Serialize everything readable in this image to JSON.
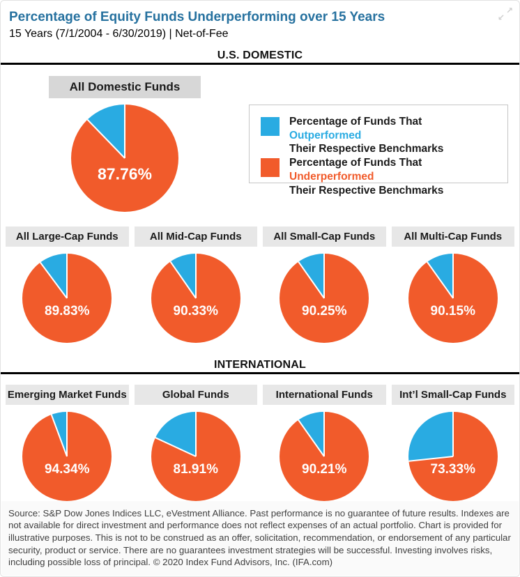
{
  "header": {
    "title": "Percentage of Equity Funds Underperforming over 15 Years",
    "subtitle": "15 Years (7/1/2004 - 6/30/2019) | Net-of-Fee"
  },
  "icons": {
    "expand_ne": "↗",
    "expand_sw": "↙"
  },
  "colors": {
    "outperformed": "#29ABE2",
    "underperformed": "#F15B2B",
    "title": "#26719F"
  },
  "legend": {
    "items": [
      {
        "swatch": "outperformed",
        "prefix": "Percentage of Funds That ",
        "highlight": "Outperformed",
        "line2": "Their Respective Benchmarks"
      },
      {
        "swatch": "underperformed",
        "prefix": "Percentage of Funds That ",
        "highlight": "Underperformed",
        "line2": "Their Respective Benchmarks"
      }
    ]
  },
  "chart_data": {
    "type": "pie",
    "title": "Percentage of Equity Funds Underperforming over 15 Years",
    "subtitle": "15 Years (7/1/2004 - 6/30/2019) | Net-of-Fee",
    "unit": "%",
    "legend": [
      "Percentage of Funds That Outperformed Their Respective Benchmarks",
      "Percentage of Funds That Underperformed Their Respective Benchmarks"
    ],
    "legend_position": "right of hero pie",
    "sections": [
      {
        "name": "U.S. DOMESTIC",
        "pies": [
          {
            "label": "All Domestic Funds",
            "underperformed_pct": 87.76,
            "outperformed_pct": 12.24,
            "display": "87.76%"
          },
          {
            "label": "All Large-Cap Funds",
            "underperformed_pct": 89.83,
            "outperformed_pct": 10.17,
            "display": "89.83%"
          },
          {
            "label": "All Mid-Cap Funds",
            "underperformed_pct": 90.33,
            "outperformed_pct": 9.67,
            "display": "90.33%"
          },
          {
            "label": "All Small-Cap Funds",
            "underperformed_pct": 90.25,
            "outperformed_pct": 9.75,
            "display": "90.25%"
          },
          {
            "label": "All Multi-Cap Funds",
            "underperformed_pct": 90.15,
            "outperformed_pct": 9.85,
            "display": "90.15%"
          }
        ]
      },
      {
        "name": "INTERNATIONAL",
        "pies": [
          {
            "label": "Emerging Market Funds",
            "underperformed_pct": 94.34,
            "outperformed_pct": 5.66,
            "display": "94.34%"
          },
          {
            "label": "Global Funds",
            "underperformed_pct": 81.91,
            "outperformed_pct": 18.09,
            "display": "81.91%"
          },
          {
            "label": "International Funds",
            "underperformed_pct": 90.21,
            "outperformed_pct": 9.79,
            "display": "90.21%"
          },
          {
            "label": "Int’l Small-Cap Funds",
            "underperformed_pct": 73.33,
            "outperformed_pct": 26.67,
            "display": "73.33%"
          }
        ]
      }
    ]
  },
  "footer": {
    "disclaimer": "Source: S&P Dow Jones Indices LLC, eVestment Alliance. Past performance is no guarantee of future results. Indexes are not available for direct investment and performance does not reflect expenses of an actual portfolio. Chart is provided for illustrative purposes. This is not to be construed as an offer, solicitation, recommendation, or endorsement of any particular security, product or service. There are no guarantees investment strategies will be successful. Investing involves risks, including possible loss of principal. © 2020 Index Fund Advisors, Inc. (IFA.com)"
  }
}
